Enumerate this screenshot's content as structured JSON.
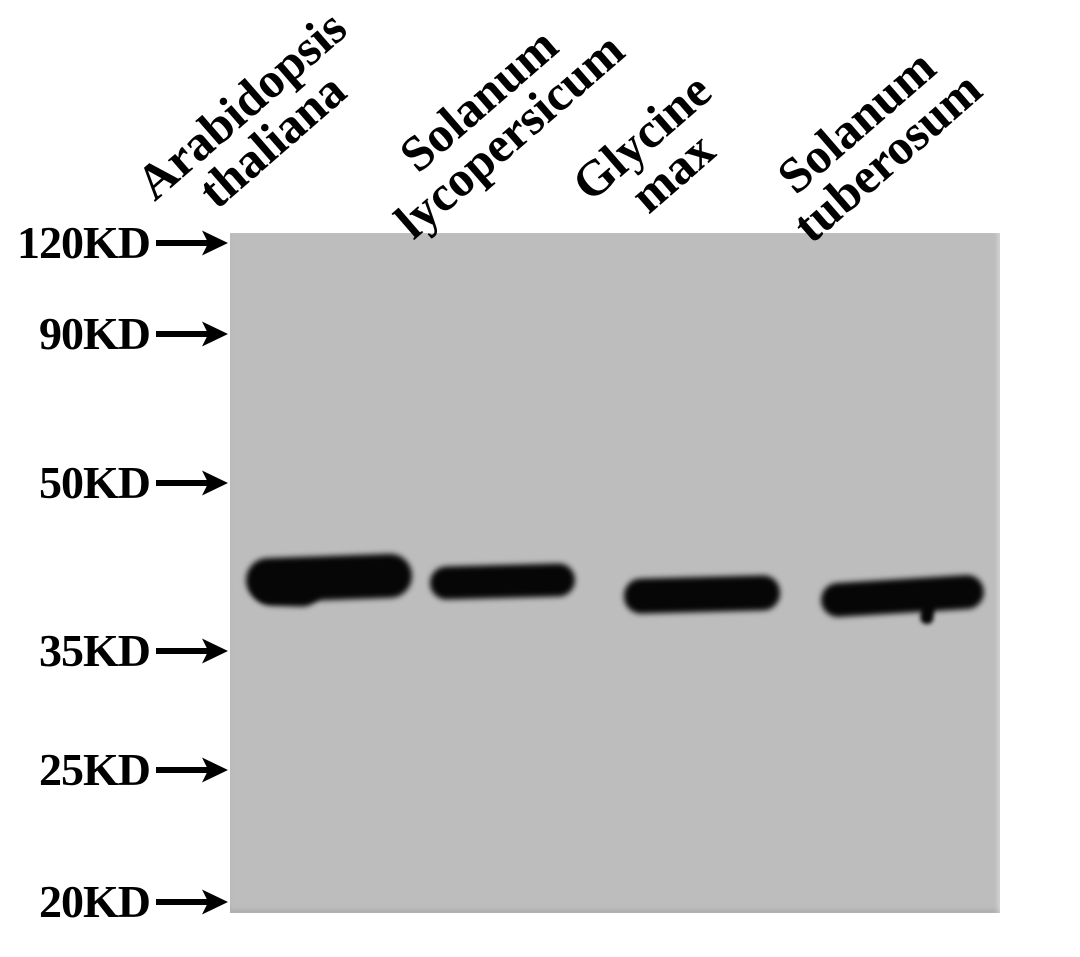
{
  "figure": {
    "kind": "western-blot"
  },
  "colors": {
    "background": "#ffffff",
    "membrane": "#bdbdbd",
    "band": "#060606",
    "text": "#000000"
  },
  "mw_markers": [
    {
      "label": "120KD",
      "icon": "right-arrow-icon"
    },
    {
      "label": "90KD",
      "icon": "right-arrow-icon"
    },
    {
      "label": "50KD",
      "icon": "right-arrow-icon"
    },
    {
      "label": "35KD",
      "icon": "right-arrow-icon"
    },
    {
      "label": "25KD",
      "icon": "right-arrow-icon"
    },
    {
      "label": "20KD",
      "icon": "right-arrow-icon"
    }
  ],
  "lanes": [
    {
      "line1": "Arabidopsis",
      "line2": "thaliana",
      "band": {
        "present": true,
        "approx_mw_kda": 40
      }
    },
    {
      "line1": "Solanum",
      "line2": "lycopersicum",
      "band": {
        "present": true,
        "approx_mw_kda": 40
      }
    },
    {
      "line1": "Glycine",
      "line2": "max",
      "band": {
        "present": true,
        "approx_mw_kda": 40
      }
    },
    {
      "line1": "Solanum",
      "line2": "tuberosum",
      "band": {
        "present": true,
        "approx_mw_kda": 40
      }
    }
  ]
}
